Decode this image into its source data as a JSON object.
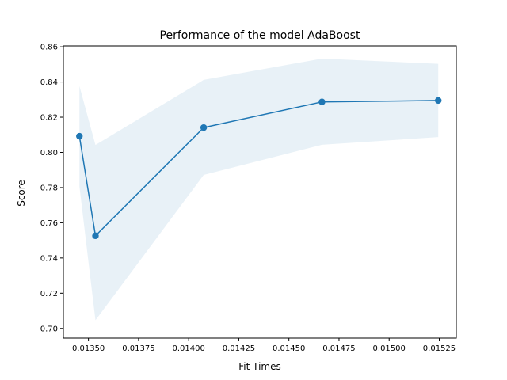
{
  "chart_data": {
    "type": "line",
    "title": "Performance of the model AdaBoost",
    "xlabel": "Fit Times",
    "ylabel": "Score",
    "xlim": [
      0.013375,
      0.015335
    ],
    "ylim": [
      0.6945,
      0.8605
    ],
    "x_ticks": [
      0.0135,
      0.01375,
      0.014,
      0.01425,
      0.0145,
      0.01475,
      0.015,
      0.01525
    ],
    "x_tick_labels": [
      "0.01350",
      "0.01375",
      "0.01400",
      "0.01425",
      "0.01450",
      "0.01475",
      "0.01500",
      "0.01525"
    ],
    "y_ticks": [
      0.7,
      0.72,
      0.74,
      0.76,
      0.78,
      0.8,
      0.82,
      0.84,
      0.86
    ],
    "y_tick_labels": [
      "0.70",
      "0.72",
      "0.74",
      "0.76",
      "0.78",
      "0.80",
      "0.82",
      "0.84",
      "0.86"
    ],
    "grid": false,
    "line_color": "#1f77b4",
    "band_color": "#1f77b4",
    "series": [
      {
        "points": [
          {
            "x": 0.013455,
            "y": 0.8092
          },
          {
            "x": 0.013535,
            "y": 0.7526
          },
          {
            "x": 0.014075,
            "y": 0.8141
          },
          {
            "x": 0.014665,
            "y": 0.8287
          },
          {
            "x": 0.015245,
            "y": 0.8295
          }
        ],
        "band_upper": [
          0.8377,
          0.8042,
          0.8412,
          0.8533,
          0.8503
        ],
        "band_lower": [
          0.7807,
          0.7046,
          0.7872,
          0.8043,
          0.8087
        ]
      }
    ]
  }
}
